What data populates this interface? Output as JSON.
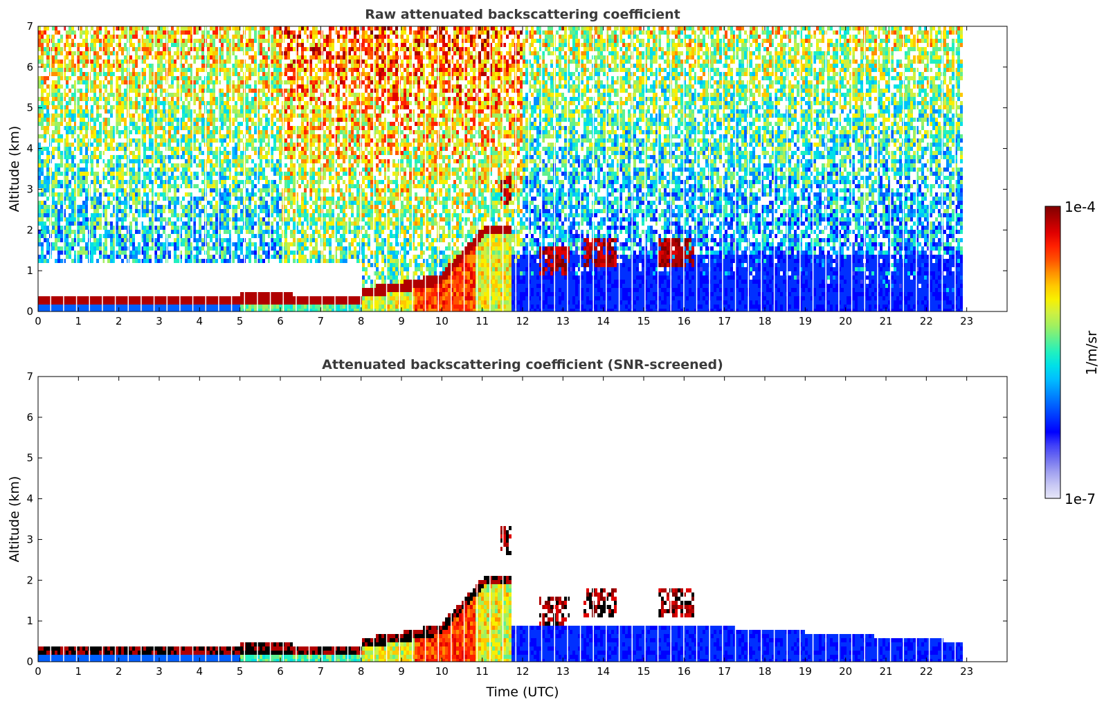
{
  "chart_data": [
    {
      "type": "heatmap",
      "title": "Raw attenuated backscattering coefficient",
      "xlabel": "",
      "ylabel": "Altitude (km)",
      "xlim": [
        0,
        24
      ],
      "ylim": [
        0,
        7
      ],
      "xticks": [
        0,
        1,
        2,
        3,
        4,
        5,
        6,
        7,
        8,
        9,
        10,
        11,
        12,
        13,
        14,
        15,
        16,
        17,
        18,
        19,
        20,
        21,
        22,
        23
      ],
      "yticks": [
        0,
        1,
        2,
        3,
        4,
        5,
        6,
        7
      ],
      "data_end_time": 22.85,
      "screened": false,
      "features": [
        {
          "name": "boundary-layer",
          "time_range": [
            0,
            8
          ],
          "altitude_km": 0.3
        },
        {
          "name": "rising-layer",
          "time_range": [
            8,
            11.7
          ],
          "altitude_km": [
            0.5,
            2.2
          ]
        },
        {
          "name": "cloud-top",
          "time_range": [
            11.4,
            11.7
          ],
          "altitude_km": 3.0
        },
        {
          "name": "cloud-13",
          "time_range": [
            12.4,
            13.1
          ],
          "altitude_km": 1.3
        },
        {
          "name": "cloud-14",
          "time_range": [
            13.5,
            14.3
          ],
          "altitude_km": 1.5
        },
        {
          "name": "cloud-16",
          "time_range": [
            15.3,
            16.2
          ],
          "altitude_km": 1.5
        }
      ]
    },
    {
      "type": "heatmap",
      "title": "Attenuated backscattering coefficient (SNR-screened)",
      "xlabel": "Time (UTC)",
      "ylabel": "Altitude (km)",
      "xlim": [
        0,
        24
      ],
      "ylim": [
        0,
        7
      ],
      "xticks": [
        0,
        1,
        2,
        3,
        4,
        5,
        6,
        7,
        8,
        9,
        10,
        11,
        12,
        13,
        14,
        15,
        16,
        17,
        18,
        19,
        20,
        21,
        22,
        23
      ],
      "yticks": [
        0,
        1,
        2,
        3,
        4,
        5,
        6,
        7
      ],
      "data_end_time": 22.85,
      "screened": true
    }
  ],
  "colorbar": {
    "label": "1/m/sr",
    "max_label": "1e-4",
    "min_label": "1e-7",
    "colors": [
      "#e6e6f8",
      "#c8c8f4",
      "#a0a0f0",
      "#7070f0",
      "#4040f8",
      "#0000ff",
      "#0030ff",
      "#0060ff",
      "#0090ff",
      "#00bfff",
      "#00e0e8",
      "#20f0c0",
      "#60f090",
      "#a0f060",
      "#d0f040",
      "#f8f000",
      "#ffc800",
      "#ff9000",
      "#ff5000",
      "#ff2000",
      "#e00000",
      "#b00000",
      "#800000"
    ]
  }
}
